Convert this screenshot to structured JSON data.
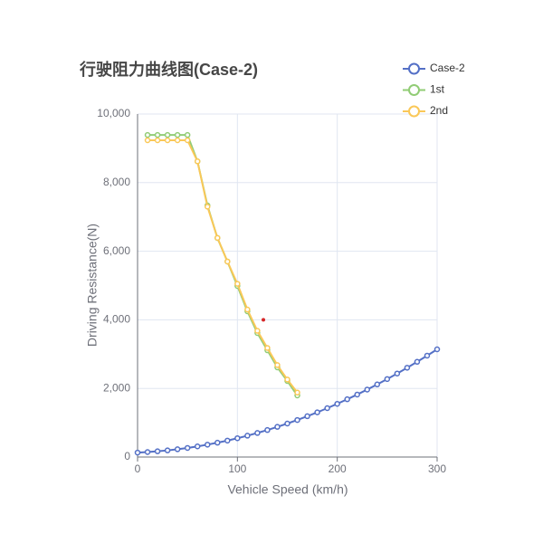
{
  "chart_data": {
    "type": "line",
    "title": "行驶阻力曲线图(Case-2)",
    "xlabel": "Vehicle Speed (km/h)",
    "ylabel": "Driving Resistance(N)",
    "xlim": [
      0,
      300
    ],
    "xticks": [
      0,
      100,
      200,
      300
    ],
    "ylim": [
      0,
      10000
    ],
    "yticks": [
      0,
      {
        "value": 2000,
        "label": "2,000"
      },
      {
        "value": 4000,
        "label": "4,000"
      },
      {
        "value": 6000,
        "label": "6,000"
      },
      {
        "value": 8000,
        "label": "8,000"
      },
      {
        "value": 10000,
        "label": "10,000"
      }
    ],
    "grid": true,
    "legend": "top-right",
    "series": [
      {
        "name": "Case-2",
        "color": "#5470c6",
        "x": [
          0,
          10,
          20,
          30,
          40,
          50,
          60,
          70,
          80,
          90,
          100,
          110,
          120,
          130,
          140,
          150,
          160,
          170,
          180,
          190,
          200,
          210,
          220,
          230,
          240,
          250,
          260,
          270,
          280,
          290,
          300
        ],
        "values": [
          130,
          145,
          167,
          193,
          227,
          265,
          310,
          361,
          418,
          479,
          548,
          622,
          702,
          787,
          879,
          976,
          1080,
          1189,
          1303,
          1425,
          1551,
          1684,
          1822,
          1967,
          2117,
          2273,
          2435,
          2603,
          2776,
          2956,
          3140
        ]
      },
      {
        "name": "1st",
        "color": "#91cc75",
        "x": [
          10,
          20,
          30,
          40,
          50,
          60,
          70,
          80,
          90,
          100,
          110,
          120,
          130,
          140,
          150,
          160
        ],
        "values": [
          9390,
          9390,
          9390,
          9390,
          9390,
          8620,
          7335,
          6385,
          5700,
          4987,
          4248,
          3615,
          3113,
          2612,
          2216,
          1794
        ]
      },
      {
        "name": "2nd",
        "color": "#fac858",
        "x": [
          10,
          20,
          30,
          40,
          50,
          60,
          70,
          80,
          90,
          100,
          110,
          120,
          130,
          140,
          150,
          160
        ],
        "values": [
          9235,
          9235,
          9235,
          9235,
          9235,
          8620,
          7300,
          6390,
          5700,
          5050,
          4300,
          3680,
          3180,
          2680,
          2260,
          1880
        ]
      }
    ],
    "marker": {
      "x": 126,
      "y": 4000,
      "color": "#d62728"
    }
  }
}
